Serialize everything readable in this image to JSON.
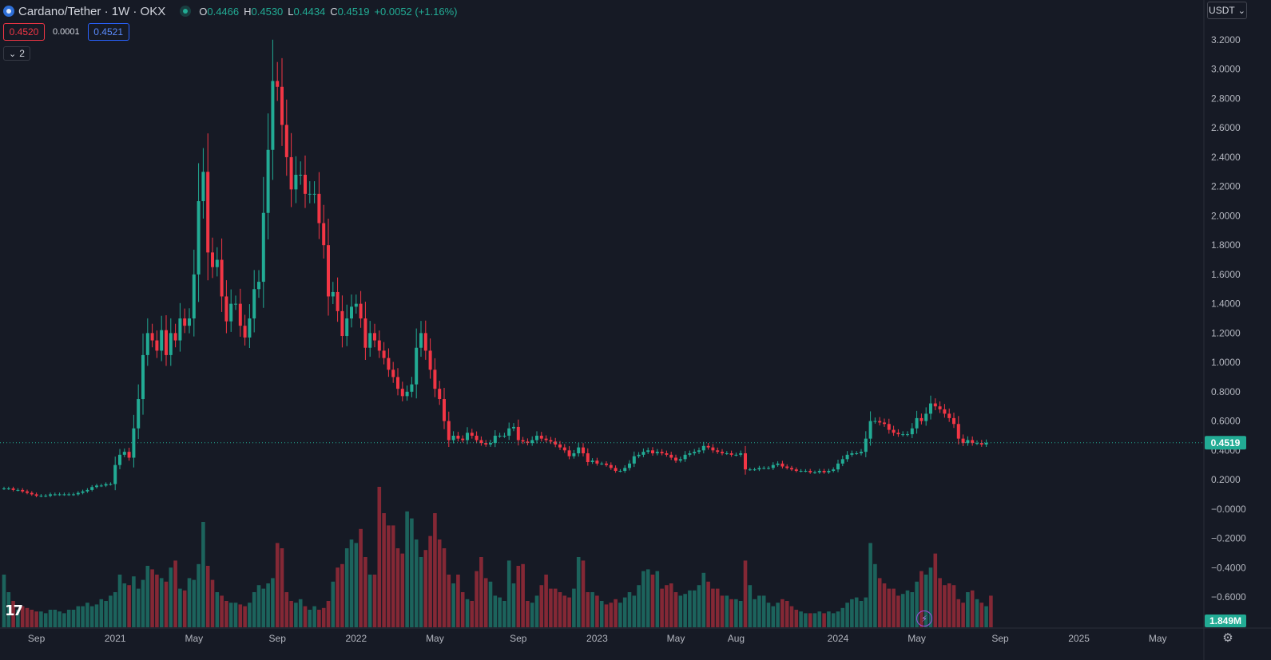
{
  "header": {
    "title": "Cardano/Tether · 1W · OKX",
    "ohlc": [
      {
        "key": "O",
        "value": "0.4466"
      },
      {
        "key": "H",
        "value": "0.4530"
      },
      {
        "key": "L",
        "value": "0.4434"
      },
      {
        "key": "C",
        "value": "0.4519"
      }
    ],
    "change": "+0.0052 (+1.16%)"
  },
  "trade": {
    "sell": "0.4520",
    "spread": "0.0001",
    "buy": "0.4521"
  },
  "indicators_toggle": {
    "count": "2"
  },
  "currency": "USDT",
  "last_price_label": "0.4519",
  "volume_label": "1.849M",
  "icons": {
    "coin": "cardano-coin-icon",
    "status": "market-open-dot-icon",
    "logo": "tradingview-logo",
    "replay": "lightning-icon",
    "settings": "gear-icon"
  },
  "colors": {
    "up": "#22ab94",
    "down": "#f23645",
    "background": "#161a25",
    "last_price": "#22ab94"
  },
  "chart_data": {
    "type": "candlestick",
    "timeframe": "1W",
    "symbol": "Cardano/Tether",
    "exchange": "OKX",
    "ylim": [
      -0.6,
      3.2
    ],
    "y_ticks": [
      "3.2000",
      "3.0000",
      "2.8000",
      "2.6000",
      "2.4000",
      "2.2000",
      "2.0000",
      "1.8000",
      "1.6000",
      "1.4000",
      "1.2000",
      "1.0000",
      "0.8000",
      "0.6000",
      "0.4000",
      "0.2000",
      "−0.0000",
      "−0.2000",
      "−0.4000",
      "−0.6000"
    ],
    "y_tick_values": [
      3.2,
      3.0,
      2.8,
      2.6,
      2.4,
      2.2,
      2.0,
      1.8,
      1.6,
      1.4,
      1.2,
      1.0,
      0.8,
      0.6,
      0.4,
      0.2,
      0,
      -0.2,
      -0.4,
      -0.6
    ],
    "x_ticks": [
      {
        "label": "Sep",
        "week": 7
      },
      {
        "label": "2021",
        "week": 24
      },
      {
        "label": "May",
        "week": 41
      },
      {
        "label": "Sep",
        "week": 59
      },
      {
        "label": "2022",
        "week": 76
      },
      {
        "label": "May",
        "week": 93
      },
      {
        "label": "Sep",
        "week": 111
      },
      {
        "label": "2023",
        "week": 128
      },
      {
        "label": "May",
        "week": 145
      },
      {
        "label": "Aug",
        "week": 158
      },
      {
        "label": "2024",
        "week": 180
      },
      {
        "label": "May",
        "week": 197
      },
      {
        "label": "Sep",
        "week": 215
      },
      {
        "label": "2025",
        "week": 232
      },
      {
        "label": "May",
        "week": 249
      }
    ],
    "last_price": 0.4519,
    "close_series": [
      0.14,
      0.14,
      0.13,
      0.13,
      0.12,
      0.11,
      0.1,
      0.09,
      0.09,
      0.09,
      0.1,
      0.1,
      0.1,
      0.1,
      0.1,
      0.1,
      0.11,
      0.12,
      0.13,
      0.15,
      0.16,
      0.16,
      0.17,
      0.17,
      0.3,
      0.37,
      0.39,
      0.35,
      0.55,
      0.75,
      1.05,
      1.2,
      1.15,
      1.08,
      1.22,
      1.05,
      1.2,
      1.15,
      1.3,
      1.25,
      1.3,
      1.6,
      2.1,
      2.3,
      1.75,
      1.65,
      1.7,
      1.45,
      1.28,
      1.4,
      1.4,
      1.25,
      1.17,
      1.3,
      1.5,
      1.55,
      2.02,
      2.45,
      2.92,
      2.88,
      2.62,
      2.4,
      2.18,
      2.28,
      2.28,
      2.15,
      2.15,
      2.15,
      1.95,
      1.8,
      1.45,
      1.48,
      1.35,
      1.18,
      1.3,
      1.38,
      1.4,
      1.3,
      1.1,
      1.2,
      1.15,
      1.08,
      1.03,
      0.95,
      0.9,
      0.82,
      0.77,
      0.8,
      0.85,
      1.1,
      1.2,
      1.08,
      0.95,
      0.82,
      0.75,
      0.6,
      0.47,
      0.5,
      0.48,
      0.47,
      0.52,
      0.5,
      0.47,
      0.45,
      0.44,
      0.45,
      0.5,
      0.5,
      0.5,
      0.55,
      0.56,
      0.47,
      0.46,
      0.45,
      0.47,
      0.5,
      0.48,
      0.47,
      0.46,
      0.44,
      0.42,
      0.4,
      0.36,
      0.38,
      0.42,
      0.38,
      0.32,
      0.33,
      0.31,
      0.31,
      0.3,
      0.28,
      0.26,
      0.26,
      0.28,
      0.31,
      0.36,
      0.37,
      0.39,
      0.4,
      0.38,
      0.39,
      0.38,
      0.37,
      0.35,
      0.33,
      0.34,
      0.37,
      0.38,
      0.39,
      0.4,
      0.43,
      0.42,
      0.4,
      0.39,
      0.38,
      0.38,
      0.37,
      0.37,
      0.38,
      0.27,
      0.27,
      0.27,
      0.28,
      0.28,
      0.28,
      0.3,
      0.31,
      0.29,
      0.28,
      0.27,
      0.26,
      0.26,
      0.26,
      0.25,
      0.25,
      0.26,
      0.25,
      0.26,
      0.27,
      0.31,
      0.34,
      0.37,
      0.38,
      0.38,
      0.39,
      0.48,
      0.6,
      0.6,
      0.59,
      0.58,
      0.54,
      0.52,
      0.51,
      0.51,
      0.51,
      0.55,
      0.62,
      0.6,
      0.65,
      0.72,
      0.7,
      0.68,
      0.65,
      0.62,
      0.58,
      0.48,
      0.45,
      0.47,
      0.45,
      0.45,
      0.44,
      0.4519
    ],
    "volume_series": [
      0.3,
      0.2,
      0.15,
      0.1,
      0.12,
      0.11,
      0.1,
      0.09,
      0.09,
      0.08,
      0.1,
      0.1,
      0.09,
      0.08,
      0.1,
      0.1,
      0.12,
      0.12,
      0.14,
      0.12,
      0.13,
      0.16,
      0.15,
      0.18,
      0.2,
      0.3,
      0.25,
      0.24,
      0.29,
      0.22,
      0.27,
      0.35,
      0.33,
      0.3,
      0.28,
      0.26,
      0.34,
      0.38,
      0.22,
      0.21,
      0.28,
      0.27,
      0.36,
      0.6,
      0.35,
      0.27,
      0.2,
      0.18,
      0.15,
      0.14,
      0.14,
      0.13,
      0.12,
      0.14,
      0.2,
      0.24,
      0.22,
      0.25,
      0.28,
      0.48,
      0.45,
      0.2,
      0.15,
      0.14,
      0.16,
      0.12,
      0.1,
      0.12,
      0.1,
      0.11,
      0.15,
      0.26,
      0.34,
      0.36,
      0.45,
      0.5,
      0.48,
      0.56,
      0.4,
      0.3,
      0.3,
      0.8,
      0.65,
      0.58,
      0.58,
      0.45,
      0.42,
      0.66,
      0.62,
      0.5,
      0.4,
      0.44,
      0.52,
      0.65,
      0.5,
      0.45,
      0.3,
      0.25,
      0.3,
      0.2,
      0.16,
      0.15,
      0.32,
      0.4,
      0.28,
      0.26,
      0.18,
      0.17,
      0.15,
      0.38,
      0.25,
      0.35,
      0.36,
      0.15,
      0.14,
      0.18,
      0.24,
      0.3,
      0.22,
      0.22,
      0.2,
      0.18,
      0.17,
      0.22,
      0.4,
      0.38,
      0.2,
      0.2,
      0.18,
      0.15,
      0.13,
      0.14,
      0.16,
      0.14,
      0.17,
      0.2,
      0.18,
      0.24,
      0.32,
      0.33,
      0.3,
      0.32,
      0.22,
      0.24,
      0.25,
      0.2,
      0.18,
      0.19,
      0.21,
      0.21,
      0.24,
      0.31,
      0.26,
      0.22,
      0.22,
      0.18,
      0.18,
      0.16,
      0.16,
      0.15,
      0.38,
      0.24,
      0.16,
      0.18,
      0.18,
      0.14,
      0.12,
      0.14,
      0.16,
      0.15,
      0.12,
      0.1,
      0.09,
      0.08,
      0.08,
      0.08,
      0.09,
      0.08,
      0.09,
      0.08,
      0.09,
      0.11,
      0.14,
      0.16,
      0.17,
      0.15,
      0.17,
      0.48,
      0.36,
      0.28,
      0.25,
      0.22,
      0.22,
      0.18,
      0.19,
      0.21,
      0.2,
      0.26,
      0.32,
      0.3,
      0.34,
      0.42,
      0.28,
      0.24,
      0.25,
      0.24,
      0.16,
      0.14,
      0.2,
      0.21,
      0.16,
      0.14,
      0.12,
      0.18
    ]
  }
}
